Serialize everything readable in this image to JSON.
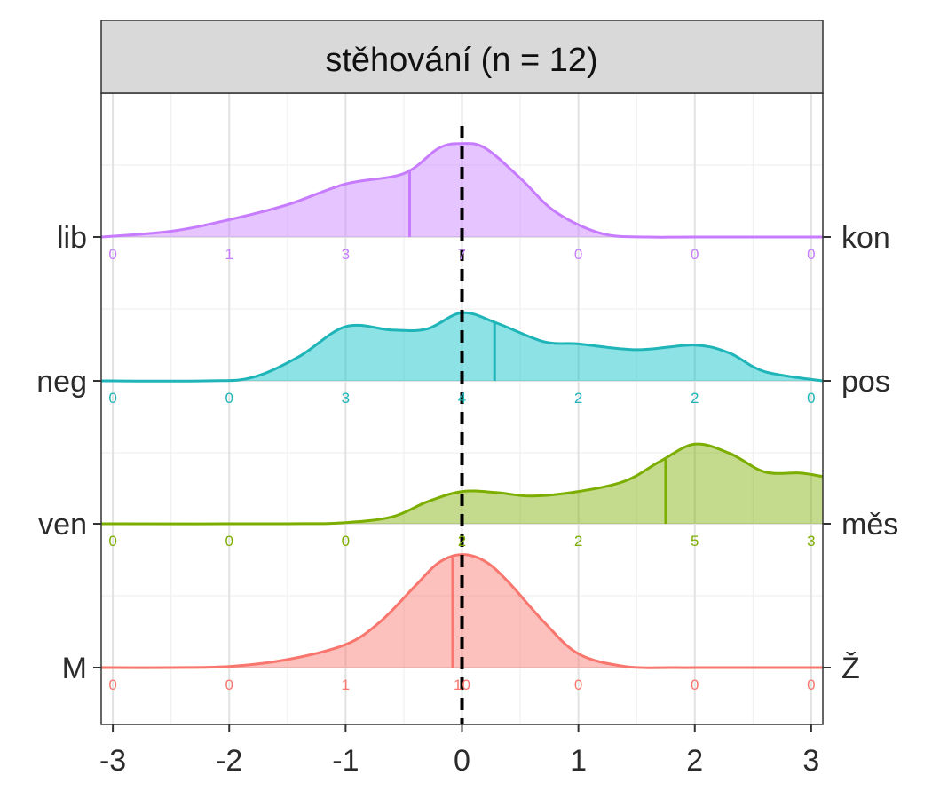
{
  "chart_data": {
    "type": "ridgeline",
    "title": "stěhování (n = 12)",
    "xlim": [
      -3.1,
      3.1
    ],
    "x_ticks": [
      "-3",
      "-2",
      "-1",
      "0",
      "1",
      "2",
      "3"
    ],
    "x_tick_values": [
      -3,
      -2,
      -1,
      0,
      1,
      2,
      3
    ],
    "reference_line_x": 0,
    "grid": true,
    "series": [
      {
        "left_label": "M",
        "right_label": "Ž",
        "color": "#F8766D",
        "mean": -0.08,
        "counts": [
          "0",
          "0",
          "1",
          "10",
          "0",
          "0",
          "0"
        ],
        "density_x": [
          -3.1,
          -2.5,
          -2.0,
          -1.5,
          -1.0,
          -0.7,
          -0.4,
          -0.2,
          0.0,
          0.2,
          0.4,
          0.7,
          1.0,
          1.4,
          1.8,
          2.2,
          3.1
        ],
        "density_y": [
          0.0,
          0.0,
          0.01,
          0.07,
          0.2,
          0.4,
          0.71,
          0.91,
          0.98,
          0.92,
          0.74,
          0.4,
          0.12,
          0.01,
          0.0,
          0.0,
          0.0
        ]
      },
      {
        "left_label": "ven",
        "right_label": "měs",
        "color": "#7CAE00",
        "mean": 1.75,
        "counts": [
          "0",
          "0",
          "0",
          "2",
          "2",
          "5",
          "3"
        ],
        "density_x": [
          -3.1,
          -1.5,
          -1.0,
          -0.6,
          -0.3,
          0.0,
          0.3,
          0.6,
          1.0,
          1.4,
          1.7,
          2.0,
          2.3,
          2.6,
          2.9,
          3.1
        ],
        "density_y": [
          0.0,
          0.0,
          0.01,
          0.06,
          0.19,
          0.28,
          0.27,
          0.24,
          0.28,
          0.37,
          0.54,
          0.69,
          0.61,
          0.45,
          0.44,
          0.41
        ]
      },
      {
        "left_label": "neg",
        "right_label": "pos",
        "color": "#00BFC4",
        "mean": 0.28,
        "counts": [
          "0",
          "0",
          "3",
          "4",
          "2",
          "2",
          "0"
        ],
        "density_x": [
          -3.1,
          -2.2,
          -1.8,
          -1.4,
          -1.0,
          -0.6,
          -0.3,
          0.0,
          0.3,
          0.7,
          1.0,
          1.5,
          2.0,
          2.3,
          2.6,
          3.1
        ],
        "density_y": [
          0.0,
          0.0,
          0.03,
          0.21,
          0.47,
          0.44,
          0.45,
          0.59,
          0.5,
          0.34,
          0.32,
          0.27,
          0.31,
          0.24,
          0.08,
          0.0
        ],
        "muted": true
      },
      {
        "left_label": "lib",
        "right_label": "kon",
        "color": "#C77CFF",
        "mean": -0.45,
        "counts": [
          "0",
          "1",
          "3",
          "7",
          "0",
          "0",
          "0"
        ],
        "density_x": [
          -3.1,
          -2.5,
          -2.0,
          -1.5,
          -1.0,
          -0.5,
          -0.2,
          0.0,
          0.2,
          0.5,
          0.8,
          1.2,
          1.6,
          2.0,
          3.1
        ],
        "density_y": [
          0.0,
          0.05,
          0.15,
          0.28,
          0.46,
          0.55,
          0.77,
          0.81,
          0.77,
          0.51,
          0.22,
          0.03,
          0.0,
          0.0,
          0.0
        ]
      }
    ]
  }
}
